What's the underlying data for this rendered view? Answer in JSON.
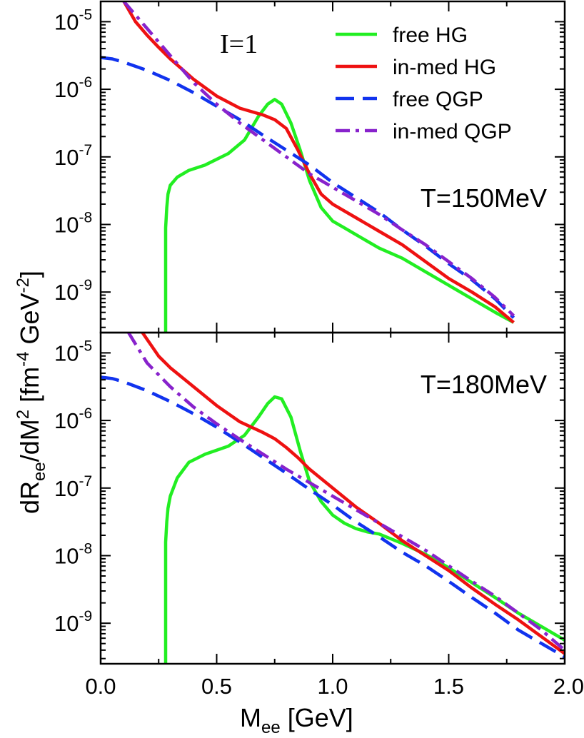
{
  "chart_data": {
    "type": "line",
    "shared": {
      "xlabel_main": "M",
      "xlabel_sub": "ee",
      "xlabel_unit": " [GeV]",
      "xlim": [
        0.0,
        2.0
      ],
      "xticks": [
        "0.0",
        "0.5",
        "1.0",
        "1.5",
        "2.0"
      ],
      "ylabel": {
        "a": "dR",
        "a_sub": "ee",
        "b": "/dM",
        "b_sup": "2",
        "c": " [fm",
        "c_sup": "-4",
        "d": " GeV",
        "d_sup": "-2",
        "e": "]"
      },
      "ytick_base": "10",
      "ytick_exponents": [
        "-9",
        "-8",
        "-7",
        "-6",
        "-5"
      ],
      "yscale": "log",
      "isospin_label": "I=1",
      "legend": [
        {
          "name": "free HG",
          "color": "#22ee22",
          "style": "solid"
        },
        {
          "name": "in-med HG",
          "color": "#ee1111",
          "style": "solid"
        },
        {
          "name": "free QGP",
          "color": "#1133ee",
          "style": "dashed"
        },
        {
          "name": "in-med QGP",
          "color": "#8822cc",
          "style": "dashdot"
        }
      ]
    },
    "panels": [
      {
        "label": "T=150MeV",
        "ylim_log10": [
          -9.6,
          -4.7
        ],
        "series": [
          {
            "name": "free HG",
            "x": [
              0.28,
              0.28,
              0.285,
              0.29,
              0.3,
              0.33,
              0.38,
              0.45,
              0.55,
              0.62,
              0.68,
              0.72,
              0.75,
              0.78,
              0.82,
              0.86,
              0.9,
              0.95,
              1.0,
              1.05,
              1.1,
              1.2,
              1.3,
              1.4,
              1.5,
              1.6,
              1.7,
              1.78
            ],
            "log10y": [
              -9.6,
              -8.05,
              -7.75,
              -7.55,
              -7.42,
              -7.3,
              -7.2,
              -7.12,
              -6.95,
              -6.75,
              -6.4,
              -6.22,
              -6.15,
              -6.22,
              -6.5,
              -6.9,
              -7.35,
              -7.75,
              -7.95,
              -8.05,
              -8.15,
              -8.35,
              -8.5,
              -8.7,
              -8.9,
              -9.1,
              -9.3,
              -9.45
            ]
          },
          {
            "name": "in-med HG",
            "x": [
              0.1,
              0.15,
              0.2,
              0.25,
              0.3,
              0.4,
              0.5,
              0.6,
              0.7,
              0.75,
              0.8,
              0.85,
              0.9,
              0.95,
              1.0,
              1.1,
              1.2,
              1.3,
              1.4,
              1.5,
              1.6,
              1.7,
              1.78
            ],
            "log10y": [
              -4.7,
              -5.0,
              -5.2,
              -5.38,
              -5.55,
              -5.85,
              -6.1,
              -6.28,
              -6.38,
              -6.45,
              -6.58,
              -6.9,
              -7.25,
              -7.55,
              -7.7,
              -7.9,
              -8.1,
              -8.3,
              -8.55,
              -8.8,
              -9.0,
              -9.22,
              -9.45
            ]
          },
          {
            "name": "free QGP",
            "x": [
              0.0,
              0.05,
              0.1,
              0.2,
              0.3,
              0.4,
              0.5,
              0.6,
              0.7,
              0.8,
              0.9,
              1.0,
              1.1,
              1.2,
              1.3,
              1.4,
              1.5,
              1.6,
              1.7,
              1.78
            ],
            "log10y": [
              -5.53,
              -5.55,
              -5.6,
              -5.72,
              -5.87,
              -6.05,
              -6.25,
              -6.45,
              -6.68,
              -6.9,
              -7.12,
              -7.38,
              -7.6,
              -7.82,
              -8.08,
              -8.32,
              -8.58,
              -8.82,
              -9.1,
              -9.38
            ]
          },
          {
            "name": "in-med QGP",
            "x": [
              0.1,
              0.2,
              0.3,
              0.4,
              0.5,
              0.6,
              0.7,
              0.8,
              0.9,
              1.0,
              1.1,
              1.2,
              1.3,
              1.4,
              1.5,
              1.6,
              1.7,
              1.78
            ],
            "log10y": [
              -4.7,
              -5.1,
              -5.5,
              -5.9,
              -6.22,
              -6.5,
              -6.75,
              -7.0,
              -7.25,
              -7.45,
              -7.65,
              -7.85,
              -8.08,
              -8.3,
              -8.55,
              -8.8,
              -9.08,
              -9.35
            ]
          }
        ]
      },
      {
        "label": "T=180MeV",
        "ylim_log10": [
          -9.6,
          -4.7
        ],
        "series": [
          {
            "name": "free HG",
            "x": [
              0.28,
              0.28,
              0.285,
              0.29,
              0.3,
              0.33,
              0.38,
              0.45,
              0.55,
              0.62,
              0.68,
              0.72,
              0.75,
              0.78,
              0.82,
              0.86,
              0.9,
              0.95,
              1.0,
              1.05,
              1.1,
              1.15,
              1.2,
              1.3,
              1.4,
              1.5,
              1.6,
              1.7,
              1.8,
              1.9,
              2.0
            ],
            "log10y": [
              -9.6,
              -7.8,
              -7.5,
              -7.3,
              -7.12,
              -6.85,
              -6.62,
              -6.5,
              -6.38,
              -6.22,
              -5.95,
              -5.75,
              -5.65,
              -5.68,
              -5.95,
              -6.45,
              -6.9,
              -7.2,
              -7.4,
              -7.52,
              -7.6,
              -7.65,
              -7.68,
              -7.82,
              -7.98,
              -8.18,
              -8.4,
              -8.62,
              -8.85,
              -9.05,
              -9.25
            ]
          },
          {
            "name": "in-med HG",
            "x": [
              0.18,
              0.25,
              0.3,
              0.4,
              0.5,
              0.6,
              0.7,
              0.75,
              0.8,
              0.85,
              0.9,
              1.0,
              1.1,
              1.2,
              1.3,
              1.4,
              1.5,
              1.6,
              1.7,
              1.8,
              1.9,
              2.0
            ],
            "log10y": [
              -4.7,
              -5.05,
              -5.22,
              -5.5,
              -5.78,
              -6.02,
              -6.18,
              -6.27,
              -6.4,
              -6.55,
              -6.72,
              -7.0,
              -7.28,
              -7.52,
              -7.78,
              -8.0,
              -8.22,
              -8.48,
              -8.72,
              -8.95,
              -9.2,
              -9.45
            ]
          },
          {
            "name": "free QGP",
            "x": [
              0.0,
              0.05,
              0.1,
              0.2,
              0.3,
              0.4,
              0.5,
              0.6,
              0.7,
              0.8,
              0.9,
              1.0,
              1.1,
              1.2,
              1.3,
              1.4,
              1.5,
              1.6,
              1.7,
              1.8,
              1.9,
              2.0
            ],
            "log10y": [
              -5.36,
              -5.38,
              -5.43,
              -5.56,
              -5.72,
              -5.9,
              -6.1,
              -6.32,
              -6.55,
              -6.78,
              -7.02,
              -7.25,
              -7.5,
              -7.72,
              -7.95,
              -8.15,
              -8.38,
              -8.62,
              -8.85,
              -9.1,
              -9.3,
              -9.5
            ]
          },
          {
            "name": "in-med QGP",
            "x": [
              0.12,
              0.2,
              0.3,
              0.4,
              0.5,
              0.6,
              0.7,
              0.8,
              0.9,
              1.0,
              1.1,
              1.2,
              1.3,
              1.4,
              1.5,
              1.6,
              1.7,
              1.8,
              1.9,
              2.0
            ],
            "log10y": [
              -4.7,
              -5.15,
              -5.5,
              -5.8,
              -6.05,
              -6.28,
              -6.5,
              -6.72,
              -6.92,
              -7.12,
              -7.32,
              -7.52,
              -7.72,
              -7.92,
              -8.15,
              -8.38,
              -8.6,
              -8.85,
              -9.1,
              -9.4
            ]
          }
        ]
      }
    ]
  }
}
